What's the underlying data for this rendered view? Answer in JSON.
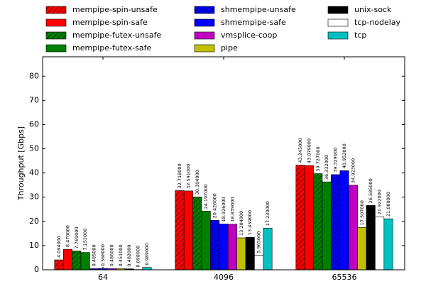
{
  "chart_data": {
    "type": "bar",
    "categories": [
      "64",
      "4096",
      "65536"
    ],
    "y_label": "Throughput [Gbps]",
    "ylim": [
      0,
      88
    ],
    "yticks": [
      0,
      10,
      20,
      30,
      40,
      50,
      60,
      70,
      80
    ],
    "legend_position": "top",
    "series": [
      {
        "name": "mempipe-spin-unsafe",
        "color": "#ff0000",
        "hatched": true,
        "values": [
          4.094,
          32.718,
          43.245
        ],
        "value_labels": [
          "4.094000",
          "32.718000",
          "43.245000"
        ]
      },
      {
        "name": "mempipe-spin-safe",
        "color": "#ff0000",
        "hatched": false,
        "values": [
          8.47,
          32.591,
          43.079
        ],
        "value_labels": [
          "8.470000",
          "32.591000",
          "43.079000"
        ]
      },
      {
        "name": "mempipe-futex-unsafe",
        "color": "#008000",
        "hatched": true,
        "values": [
          7.769,
          30.104,
          39.727
        ],
        "value_labels": [
          "7.769000",
          "30.104000",
          "39.727000"
        ]
      },
      {
        "name": "mempipe-futex-safe",
        "color": "#008000",
        "hatched": false,
        "values": [
          7.152,
          24.197,
          36.332
        ],
        "value_labels": [
          "7.152000",
          "24.197000",
          "36.332000"
        ]
      },
      {
        "name": "shmempipe-unsafe",
        "color": "#0000ff",
        "hatched": true,
        "values": [
          0.485,
          20.426,
          39.329
        ],
        "value_labels": [
          "0.485000",
          "20.426000",
          "39.329000"
        ]
      },
      {
        "name": "shmempipe-safe",
        "color": "#0000ff",
        "hatched": false,
        "values": [
          0.568,
          18.926,
          40.952
        ],
        "value_labels": [
          "0.568000",
          "18.926000",
          "40.952000"
        ]
      },
      {
        "name": "vmsplice-coop",
        "color": "#c000c0",
        "hatched": false,
        "values": [
          0.486,
          18.839,
          34.923
        ],
        "value_labels": [
          "0.486000",
          "18.839000",
          "34.923000"
        ]
      },
      {
        "name": "pipe",
        "color": "#c0c000",
        "hatched": false,
        "values": [
          0.451,
          13.204,
          17.507
        ],
        "value_labels": [
          "0.451000",
          "13.204000",
          "17.507000"
        ]
      },
      {
        "name": "unix-sock",
        "color": "#000000",
        "hatched": false,
        "values": [
          0.402,
          13.459,
          26.585
        ],
        "value_labels": [
          "0.402000",
          "13.459000",
          "26.585000"
        ]
      },
      {
        "name": "tcp-nodelay",
        "color": "#ffffff",
        "hatched": false,
        "values": [
          0.098,
          5.965,
          21.922
        ],
        "value_labels": [
          "0.098000",
          "5.965000",
          "21.922000"
        ]
      },
      {
        "name": "tcp",
        "color": "#00c0c0",
        "hatched": false,
        "values": [
          0.989,
          17.23,
          21.08
        ],
        "value_labels": [
          "0.989000",
          "17.230000",
          "21.080000"
        ]
      }
    ]
  }
}
